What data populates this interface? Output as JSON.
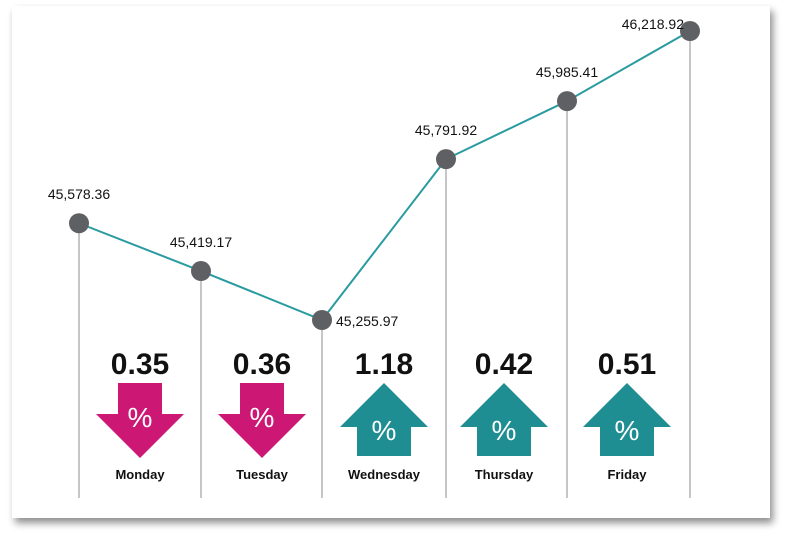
{
  "chart_data": {
    "type": "line",
    "categories": [
      "Monday",
      "Tuesday",
      "Wednesday",
      "Thursday",
      "Friday",
      ""
    ],
    "values": [
      45578.36,
      45419.17,
      45255.97,
      45791.92,
      45985.41,
      46218.92
    ],
    "value_labels": [
      "45,578.36",
      "45,419.17",
      "45,255.97",
      "45,791.92",
      "45,985.41",
      "46,218.92"
    ],
    "changes": [
      {
        "day": "Monday",
        "pct": "0.35",
        "direction": "down",
        "symbol": "%"
      },
      {
        "day": "Tuesday",
        "pct": "0.36",
        "direction": "down",
        "symbol": "%"
      },
      {
        "day": "Wednesday",
        "pct": "1.18",
        "direction": "up",
        "symbol": "%"
      },
      {
        "day": "Thursday",
        "pct": "0.42",
        "direction": "up",
        "symbol": "%"
      },
      {
        "day": "Friday",
        "pct": "0.51",
        "direction": "up",
        "symbol": "%"
      }
    ],
    "ylim": [
      45255.97,
      46218.92
    ],
    "grid": false,
    "colors": {
      "line": "#2a9ba0",
      "marker": "#5f6063",
      "drop_line": "#8c8c8c",
      "down_arrow": "#cc1874",
      "up_arrow": "#1f8e92",
      "text": "#111111"
    }
  }
}
